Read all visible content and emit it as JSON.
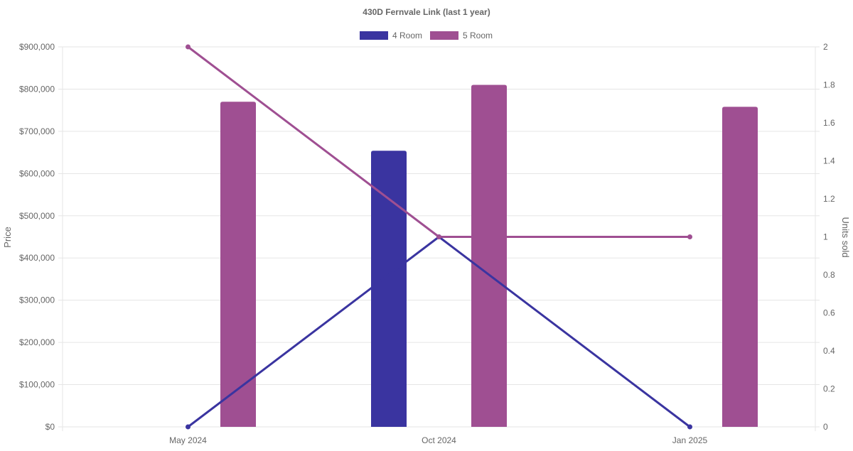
{
  "chart_data": {
    "type": "bar",
    "title": "430D Fernvale Link (last 1 year)",
    "categories": [
      "May 2024",
      "Oct 2024",
      "Jan 2025"
    ],
    "legend_position": "top",
    "grid": true,
    "y_left": {
      "label": "Price",
      "ylim": [
        0,
        900000
      ],
      "ticks": [
        "$0",
        "$100,000",
        "$200,000",
        "$300,000",
        "$400,000",
        "$500,000",
        "$600,000",
        "$700,000",
        "$800,000",
        "$900,000"
      ]
    },
    "y_right": {
      "label": "Units sold",
      "ylim": [
        0,
        2
      ],
      "ticks": [
        "0",
        "0.2",
        "0.4",
        "0.6",
        "0.8",
        "1",
        "1.2",
        "1.4",
        "1.6",
        "1.8",
        "2"
      ]
    },
    "series": [
      {
        "name": "4 Room",
        "color": "#3a34a0",
        "bar_values": [
          null,
          654000,
          null
        ],
        "line_values": [
          0,
          1,
          0
        ]
      },
      {
        "name": "5 Room",
        "color": "#9f4f92",
        "bar_values": [
          770000,
          810000,
          758000
        ],
        "line_values": [
          2,
          1,
          1
        ]
      }
    ]
  }
}
